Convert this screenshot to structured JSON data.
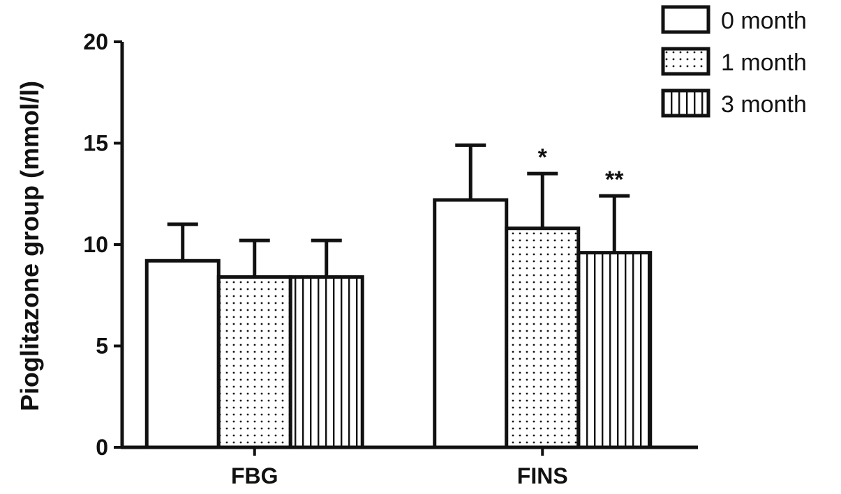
{
  "chart_data": {
    "type": "bar",
    "title": "",
    "xlabel": "",
    "ylabel": "Pioglitazone group (mmol/l)",
    "ylim": [
      0,
      20
    ],
    "yticks": [
      "0",
      "5",
      "10",
      "15",
      "20"
    ],
    "categories": [
      "FBG",
      "FINS"
    ],
    "series": [
      {
        "name": "0 month",
        "pattern": "plain",
        "values": [
          9.2,
          12.2
        ],
        "errors": [
          1.8,
          2.7
        ],
        "annotations": [
          "",
          ""
        ]
      },
      {
        "name": "1 month",
        "pattern": "dots",
        "values": [
          8.4,
          10.8
        ],
        "errors": [
          1.8,
          2.7
        ],
        "annotations": [
          "",
          "*"
        ]
      },
      {
        "name": "3 month",
        "pattern": "vertical-lines",
        "values": [
          8.4,
          9.6
        ],
        "errors": [
          1.8,
          2.8
        ],
        "annotations": [
          "",
          "**"
        ]
      }
    ],
    "legend": "top-right",
    "grid": false,
    "colors": {
      "stroke": "#111111",
      "fill": "#ffffff"
    }
  }
}
